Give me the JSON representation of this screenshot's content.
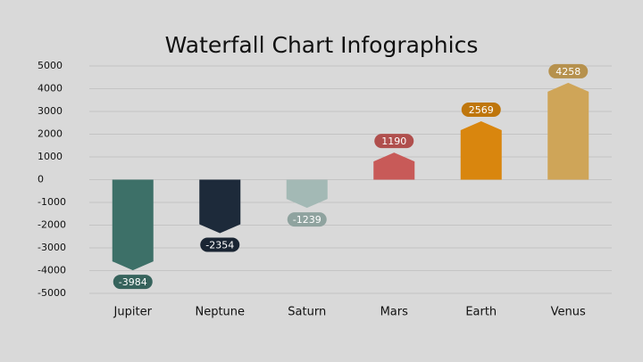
{
  "chart_data": {
    "type": "waterfall",
    "title": "Waterfall Chart Infographics",
    "categories": [
      "Jupiter",
      "Neptune",
      "Saturn",
      "Mars",
      "Earth",
      "Venus"
    ],
    "values": [
      -3984,
      -2354,
      -1239,
      1190,
      2569,
      4258
    ],
    "colors": [
      "#3d7068",
      "#1d2a3a",
      "#a3b9b5",
      "#c85a58",
      "#d9860e",
      "#cfa558"
    ],
    "ylim": [
      -5000,
      5000
    ],
    "yticks": [
      5000,
      4000,
      3000,
      2000,
      1000,
      0,
      -1000,
      -2000,
      -3000,
      -4000,
      -5000
    ],
    "grid": true
  }
}
